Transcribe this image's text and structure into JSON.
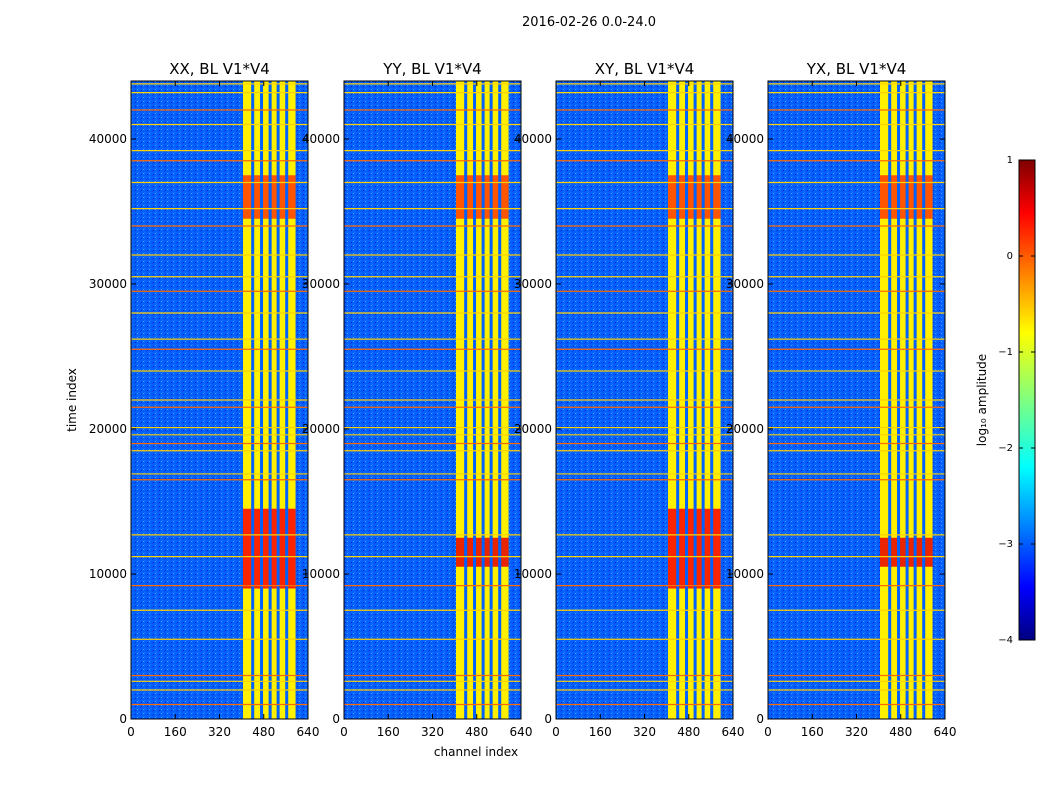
{
  "figure": {
    "suptitle": "2016-02-26 0.0-24.0",
    "xlabel": "channel index",
    "ylabel": "time index"
  },
  "chart_data": {
    "type": "heatmap",
    "title": "2016-02-26 0.0-24.0",
    "xlabel": "channel index",
    "ylabel": "time index",
    "xlim": [
      0,
      640
    ],
    "ylim": [
      0,
      44000
    ],
    "xticks": [
      0,
      160,
      320,
      480,
      640
    ],
    "yticks": [
      0,
      10000,
      20000,
      30000,
      40000
    ],
    "panels": [
      {
        "title": "XX, BL V1*V4",
        "pol": "XX",
        "baseline": "V1*V4"
      },
      {
        "title": "YY, BL V1*V4",
        "pol": "YY",
        "baseline": "V1*V4"
      },
      {
        "title": "XY, BL V1*V4",
        "pol": "XY",
        "baseline": "V1*V4"
      },
      {
        "title": "YX, BL V1*V4",
        "pol": "YX",
        "baseline": "V1*V4"
      }
    ],
    "band": {
      "channel_range": [
        405,
        595
      ],
      "gap_channels": [
        440,
        472,
        503,
        532,
        563
      ],
      "level": -0.8
    },
    "background_level": -2.9,
    "flagged_time_rows": [
      1000,
      2000,
      2600,
      3000,
      5500,
      7500,
      9200,
      11200,
      12700,
      16500,
      16900,
      18500,
      19000,
      19600,
      20100,
      21500,
      22000,
      24000,
      25500,
      26200,
      28000,
      29500,
      30500,
      32000,
      34000,
      35200,
      37000,
      38500,
      39200,
      41000,
      42000,
      43200,
      43800
    ],
    "hot_spots": [
      {
        "panels": [
          "XX",
          "XY"
        ],
        "time_range": [
          9000,
          14500
        ],
        "level": 0.4
      },
      {
        "panels": [
          "YY",
          "YX"
        ],
        "time_range": [
          10500,
          12500
        ],
        "level": 0.5
      },
      {
        "panels": [
          "XX",
          "YY",
          "XY",
          "YX"
        ],
        "time_range": [
          34500,
          37500
        ],
        "level": 0.1
      }
    ],
    "colorbar": {
      "label": "log₁₀ amplitude",
      "min": -4,
      "max": 1,
      "ticks": [
        1,
        0,
        -1,
        -2,
        -3,
        -4
      ],
      "tick_labels": [
        "1",
        "0",
        "−1",
        "−2",
        "−3",
        "−4"
      ],
      "colormap": "jet"
    }
  }
}
